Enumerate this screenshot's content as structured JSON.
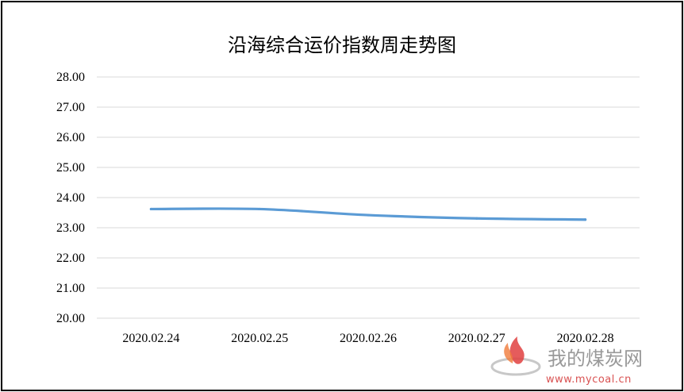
{
  "chart_data": {
    "type": "line",
    "title": "沿海综合运价指数周走势图",
    "categories": [
      "2020.02.24",
      "2020.02.25",
      "2020.02.26",
      "2020.02.27",
      "2020.02.28"
    ],
    "series": [
      {
        "values": [
          23.62,
          23.62,
          23.42,
          23.31,
          23.27
        ],
        "color": "#5b9bd5"
      }
    ],
    "yticks": [
      "20.00",
      "21.00",
      "22.00",
      "23.00",
      "24.00",
      "25.00",
      "26.00",
      "27.00",
      "28.00"
    ],
    "ylim": [
      20,
      28
    ],
    "grid": true,
    "legend": "none"
  },
  "watermark": {
    "brand": "我的煤炭网",
    "url": "www.mycoal.cn"
  }
}
